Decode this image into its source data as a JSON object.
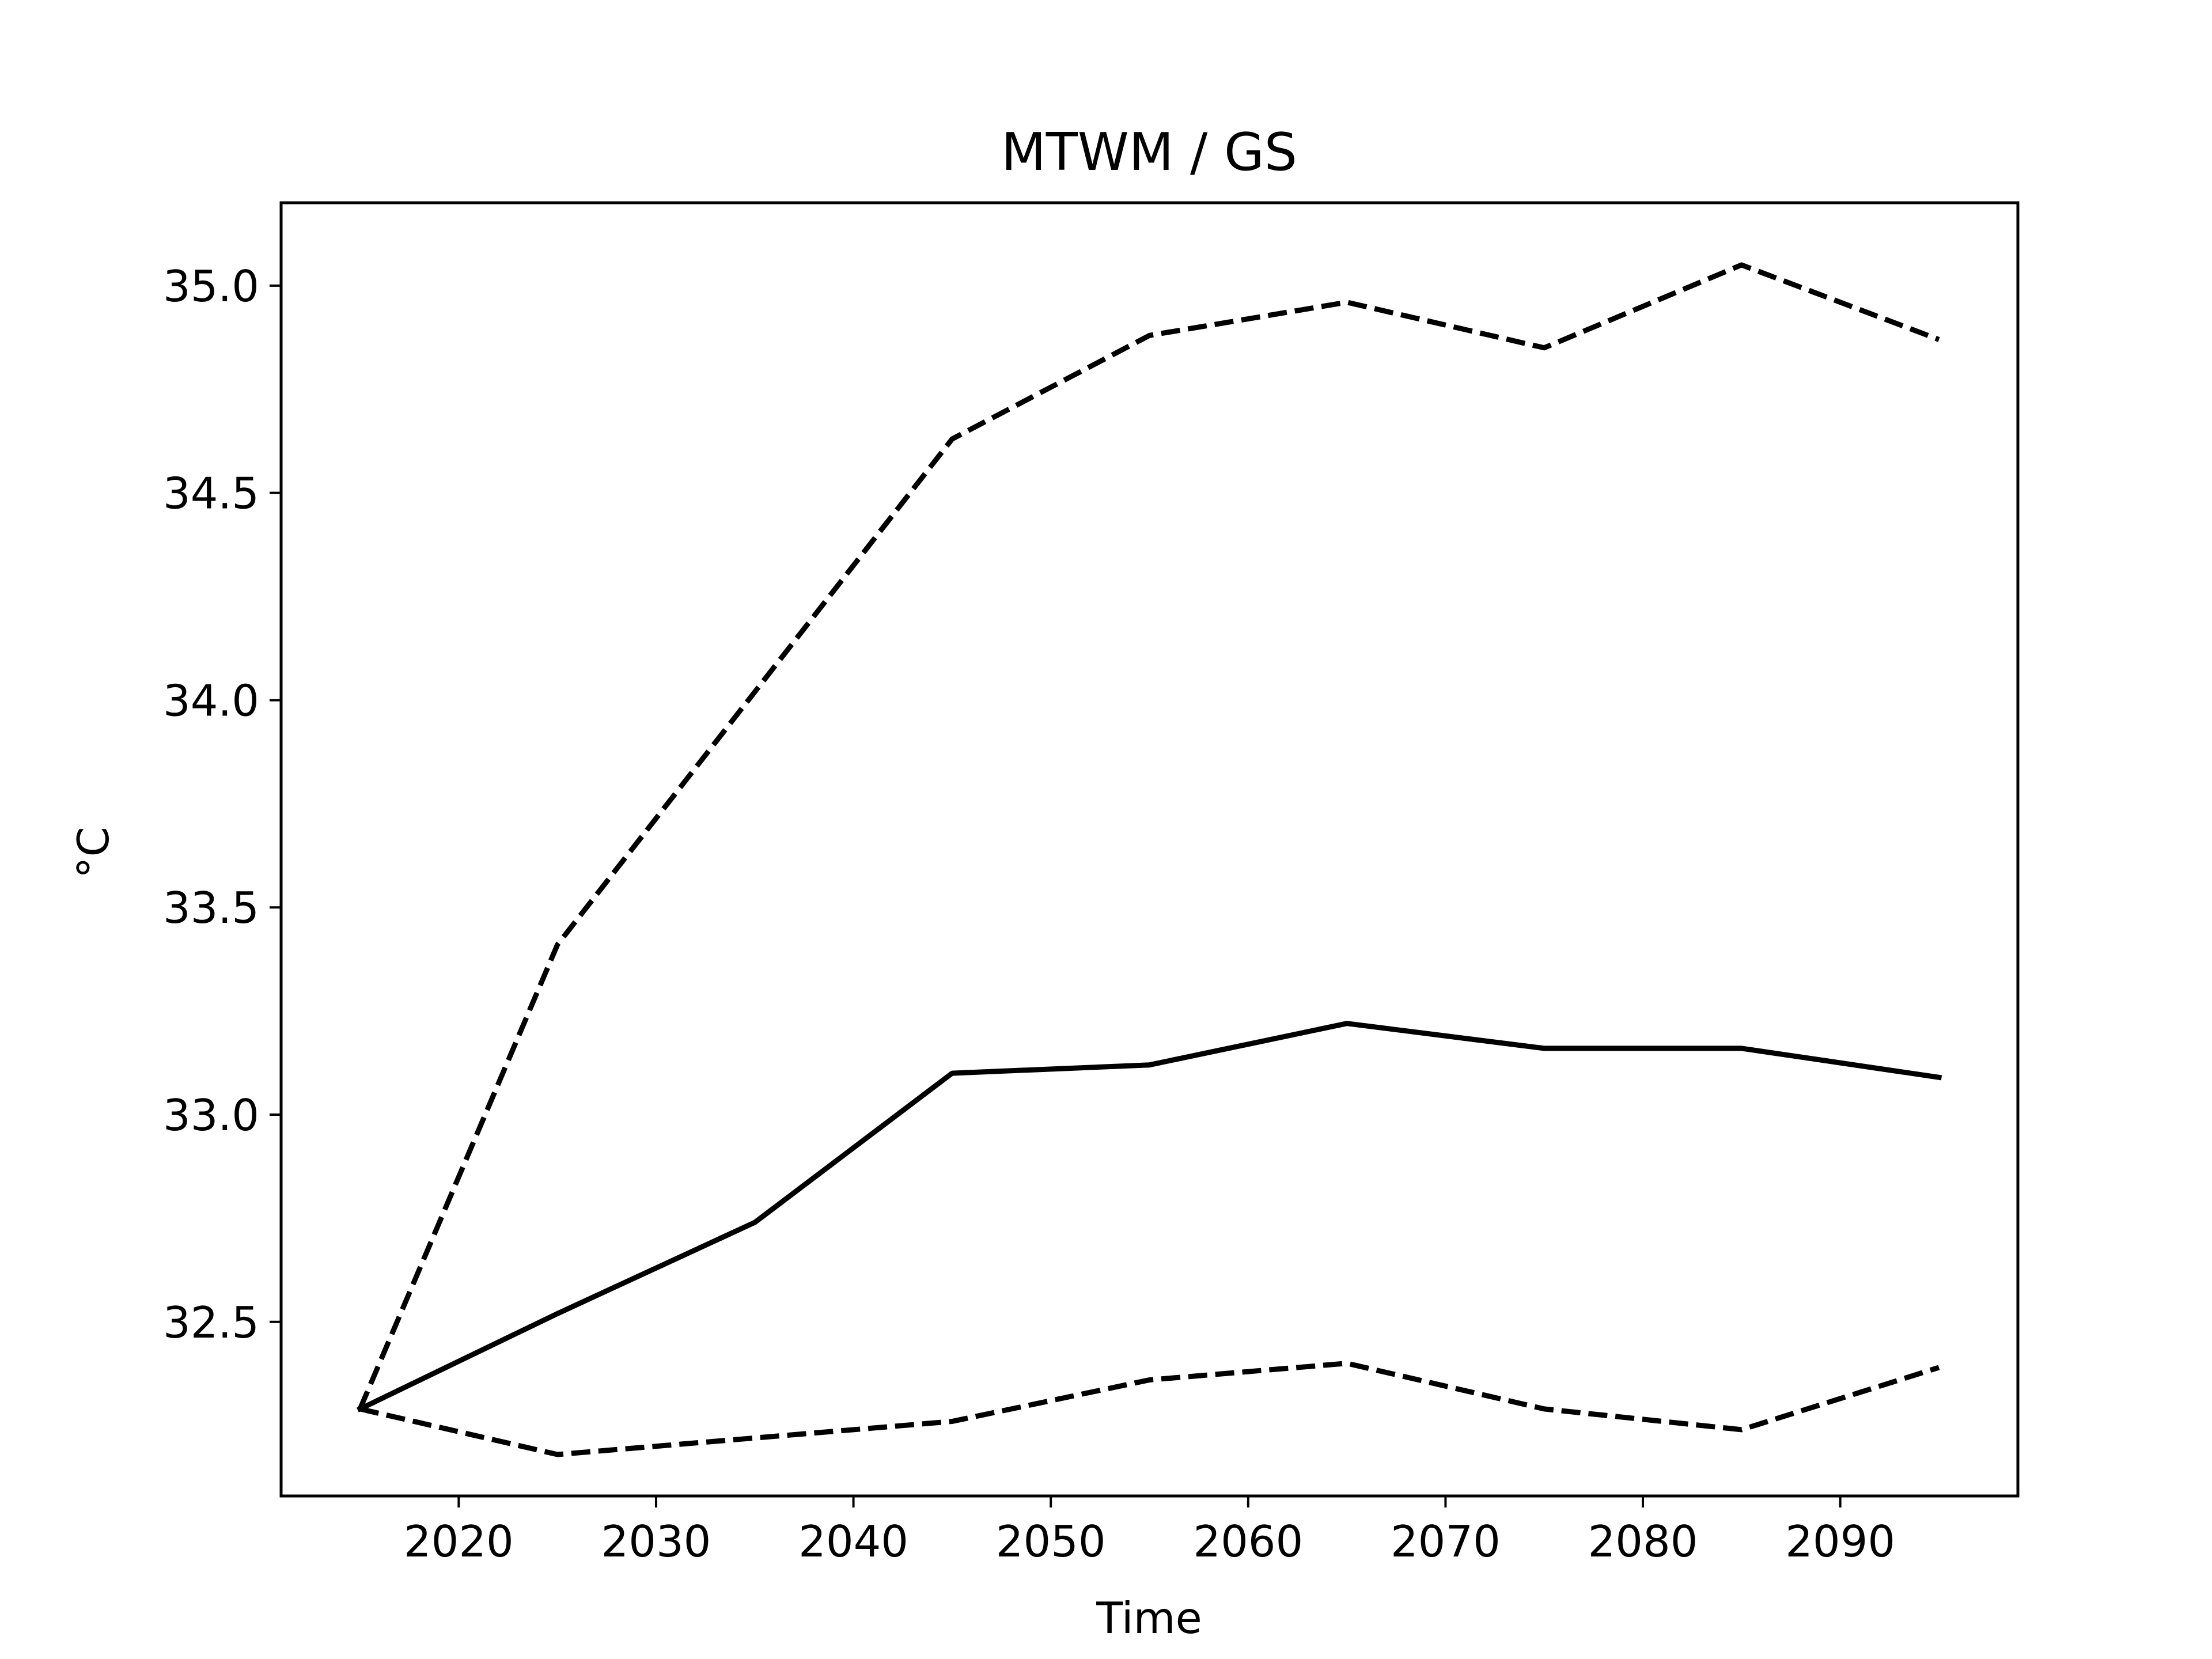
{
  "chart_data": {
    "type": "line",
    "title": "MTWM / GS",
    "xlabel": "Time",
    "ylabel": "°C",
    "x": [
      2015,
      2025,
      2035,
      2045,
      2055,
      2065,
      2075,
      2085,
      2095
    ],
    "series": [
      {
        "style": "solid",
        "values": [
          32.29,
          32.52,
          32.74,
          33.1,
          33.12,
          33.22,
          33.16,
          33.16,
          33.09
        ]
      },
      {
        "style": "dashed",
        "values": [
          32.29,
          33.41,
          34.02,
          34.63,
          34.88,
          34.96,
          34.85,
          35.05,
          34.87
        ]
      },
      {
        "style": "dashed",
        "values": [
          32.29,
          32.18,
          32.22,
          32.26,
          32.36,
          32.4,
          32.29,
          32.24,
          32.39
        ]
      }
    ],
    "xlim": [
      2011,
      2099
    ],
    "ylim": [
      32.08,
      35.2
    ],
    "xticks": [
      "2020",
      "2030",
      "2040",
      "2050",
      "2060",
      "2070",
      "2080",
      "2090"
    ],
    "yticks": [
      "32.5",
      "33.0",
      "33.5",
      "34.0",
      "34.5",
      "35.0"
    ],
    "grid": false,
    "legend": "none",
    "line_color": "#000000"
  }
}
